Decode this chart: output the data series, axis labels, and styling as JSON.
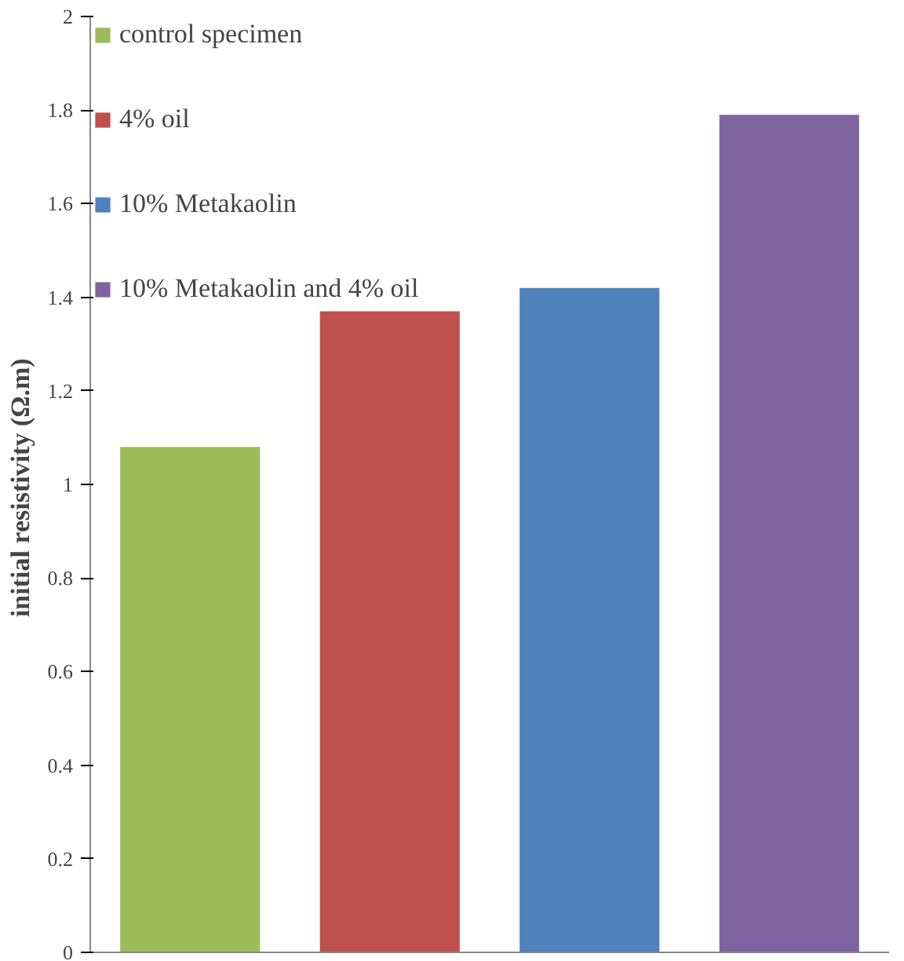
{
  "chart_data": {
    "type": "bar",
    "ylabel": "initial resistivity  (Ω.m)",
    "categories": [
      null,
      null,
      null,
      null
    ],
    "series": [
      {
        "name": "control specimen",
        "color": "#9bbb59",
        "values": [
          1.08,
          null,
          null,
          null
        ]
      },
      {
        "name": "4% oil",
        "color": "#c0504d",
        "values": [
          null,
          1.37,
          null,
          null
        ]
      },
      {
        "name": "10% Metakaolin",
        "color": "#4f81bd",
        "values": [
          null,
          null,
          1.42,
          null
        ]
      },
      {
        "name": "10% Metakaolin and 4% oil",
        "color": "#8064a2",
        "values": [
          null,
          null,
          null,
          1.79
        ]
      }
    ],
    "ylim": [
      0,
      2
    ],
    "yticks": [
      0,
      {
        "value": 0.2,
        "label": "0.2"
      },
      {
        "value": 0.4,
        "label": "0.4"
      },
      {
        "value": 0.6,
        "label": "0.6"
      },
      {
        "value": 0.8,
        "label": "0.8"
      },
      1,
      {
        "value": 1.2,
        "label": "1.2"
      },
      {
        "value": 1.4,
        "label": "1.4"
      },
      {
        "value": 1.6,
        "label": "1.6"
      },
      {
        "value": 1.8,
        "label": "1.8"
      },
      2
    ],
    "grid": false,
    "legend": "top left"
  }
}
